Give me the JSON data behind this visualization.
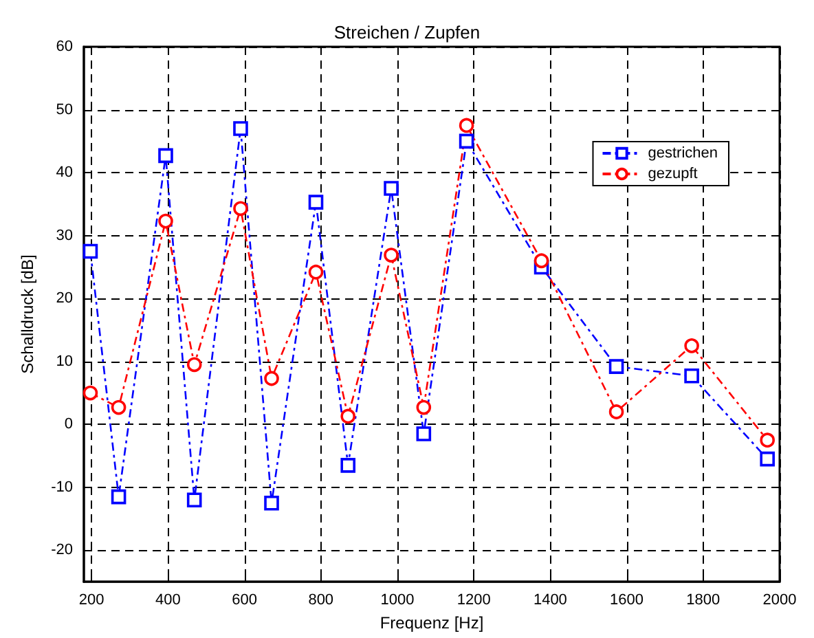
{
  "chart_data": {
    "type": "line",
    "title": "Streichen / Zupfen",
    "xlabel": "Frequenz [Hz]",
    "ylabel": "Schalldruck [dB]",
    "xlim": [
      180,
      2000
    ],
    "xticks": [
      200,
      400,
      600,
      800,
      1000,
      1200,
      1400,
      1600,
      1800,
      2000
    ],
    "ylim": [
      -25,
      60
    ],
    "yticks": [
      -20,
      -10,
      0,
      10,
      20,
      30,
      40,
      50,
      60
    ],
    "grid": true,
    "legend": "top right",
    "line_style": "dashed",
    "x": [
      197,
      271,
      394,
      469,
      590,
      671,
      787,
      871,
      984,
      1069,
      1181,
      1377,
      1573,
      1770,
      1968
    ],
    "series": [
      {
        "name": "gestrichen",
        "color": "#0000ff",
        "marker": "square",
        "values": [
          27.5,
          -11.5,
          42.7,
          -12,
          47,
          -12.5,
          35.3,
          -6.5,
          37.5,
          -1.5,
          45,
          25,
          9.2,
          7.7,
          -5.5
        ]
      },
      {
        "name": "gezupft",
        "color": "#ff0000",
        "marker": "circle",
        "values": [
          5,
          2.7,
          32.3,
          9.5,
          34.3,
          7.3,
          24.2,
          1.3,
          26.9,
          2.7,
          47.5,
          26,
          2,
          12.5,
          -2.5
        ]
      }
    ]
  }
}
